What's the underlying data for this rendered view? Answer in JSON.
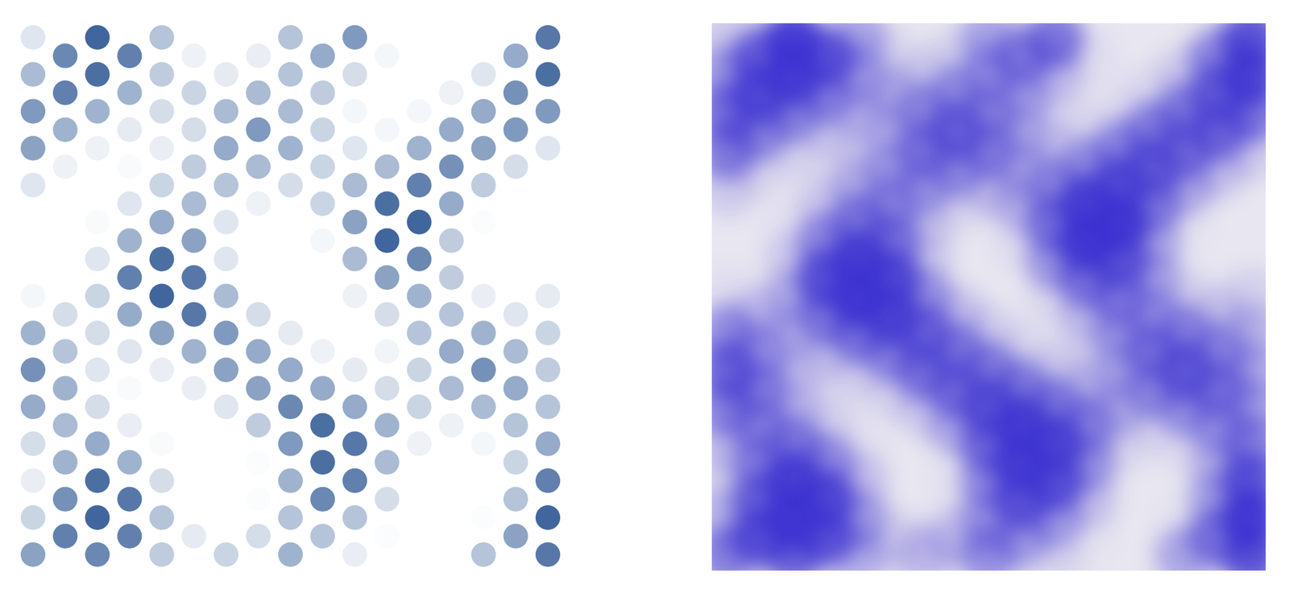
{
  "chart_data": [
    {
      "type": "dot_grid",
      "tick_labels": false,
      "color_scale": {
        "range": [
          0,
          1
        ],
        "colors": [
          "#ffffff",
          "#2c5592"
        ]
      },
      "columns": [
        [
          0.55,
          0.25,
          0.1,
          0.2,
          0.5,
          0.65,
          0.45,
          0.05,
          0,
          0,
          0.15,
          0.55,
          0.6,
          0.4,
          0.15
        ],
        [
          0.75,
          0.65,
          0.45,
          0.4,
          0.45,
          0.35,
          0.2,
          0,
          0,
          0,
          0.08,
          0.45,
          0.75,
          0.7
        ],
        [
          0.7,
          0.9,
          0.85,
          0.5,
          0.2,
          0.15,
          0.2,
          0.25,
          0.15,
          0.03,
          0,
          0.08,
          0.45,
          0.85,
          0.9
        ],
        [
          0.75,
          0.8,
          0.45,
          0.1,
          0.03,
          0.15,
          0.5,
          0.75,
          0.45,
          0.15,
          0.03,
          0.12,
          0.45,
          0.75
        ],
        [
          0.3,
          0.35,
          0.2,
          0.03,
          0,
          0.1,
          0.55,
          0.9,
          0.85,
          0.5,
          0.25,
          0.1,
          0.2,
          0.3,
          0.35
        ],
        [
          0.12,
          0,
          0,
          0,
          0.1,
          0.45,
          0.8,
          0.8,
          0.55,
          0.4,
          0.3,
          0.2,
          0.25,
          0.08
        ],
        [
          0.25,
          0,
          0,
          0,
          0.15,
          0.55,
          0.6,
          0.4,
          0.15,
          0.15,
          0.35,
          0.5,
          0.4,
          0.12,
          0
        ],
        [
          0.2,
          0.02,
          0.02,
          0.3,
          0.55,
          0.5,
          0.2,
          0,
          0,
          0.08,
          0.4,
          0.6,
          0.4,
          0.1
        ],
        [
          0.45,
          0.35,
          0.45,
          0.6,
          0.7,
          0.5,
          0.12,
          0,
          0,
          0,
          0.2,
          0.45,
          0.4,
          0.35,
          0.35
        ],
        [
          0.35,
          0.7,
          0.85,
          0.85,
          0.5,
          0.08,
          0,
          0,
          0.05,
          0.25,
          0.25,
          0.25,
          0.3,
          0.5
        ],
        [
          0.1,
          0.35,
          0.75,
          0.8,
          0.5,
          0.12,
          0,
          0.08,
          0.4,
          0.55,
          0.4,
          0.15,
          0.05,
          0.2,
          0.6
        ],
        [
          0.02,
          0.2,
          0.4,
          0.45,
          0.2,
          0.06,
          0.2,
          0.55,
          0.9,
          0.85,
          0.4,
          0.05,
          0,
          0.05
        ],
        [
          0,
          0,
          0,
          0.08,
          0.25,
          0.25,
          0.35,
          0.45,
          0.7,
          0.9,
          0.75,
          0.45,
          0.05,
          0,
          0
        ],
        [
          0,
          0,
          0,
          0.08,
          0.4,
          0.5,
          0.35,
          0.3,
          0.3,
          0.5,
          0.65,
          0.5,
          0.08,
          0
        ],
        [
          0.35,
          0.02,
          0,
          0.05,
          0.4,
          0.65,
          0.45,
          0.1,
          0,
          0.02,
          0.3,
          0.55,
          0.5,
          0.15,
          0
        ],
        [
          0.55,
          0.35,
          0.25,
          0.35,
          0.5,
          0.4,
          0.15,
          0,
          0,
          0,
          0.2,
          0.6,
          0.65,
          0.5
        ],
        [
          0.8,
          0.9,
          0.75,
          0.5,
          0.35,
          0.3,
          0.25,
          0.12,
          0,
          0,
          0,
          0.15,
          0.6,
          0.85,
          0.8
        ]
      ]
    },
    {
      "type": "image",
      "color": "#3a2fd0",
      "background": "#e8e6f0"
    }
  ]
}
